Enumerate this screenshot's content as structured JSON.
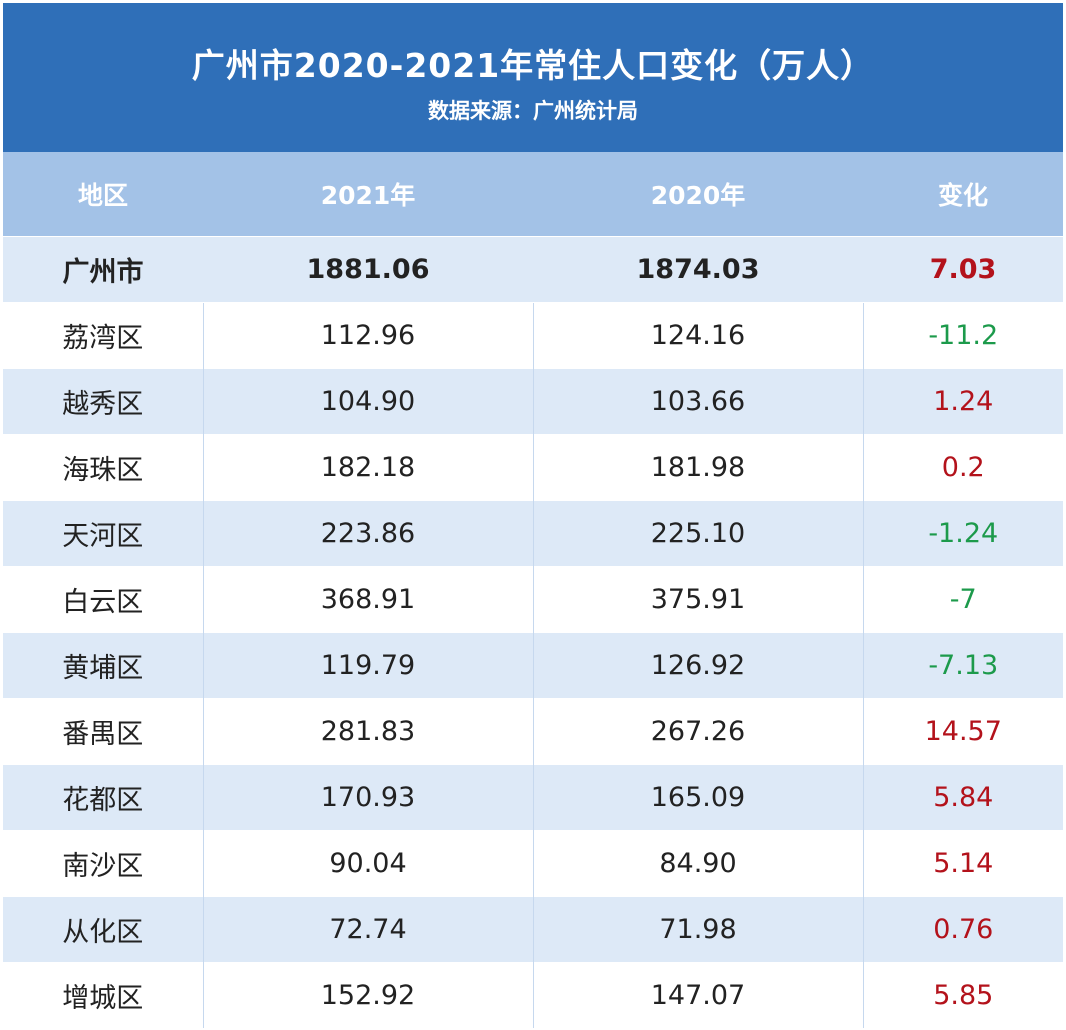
{
  "header": {
    "title": "广州市2020-2021年常住人口变化（万人）",
    "subtitle": "数据来源：广州统计局"
  },
  "colors": {
    "header_bg": "#2f6fb8",
    "column_header_bg": "#a3c2e7",
    "row_stripe": "#dde9f7",
    "increase": "#b3121b",
    "decrease": "#1c9a4b"
  },
  "chart_data": {
    "type": "table",
    "title": "广州市2020-2021年常住人口变化（万人）",
    "subtitle": "数据来源：广州统计局",
    "columns": [
      "地区",
      "2021年",
      "2020年",
      "变化"
    ],
    "rows": [
      {
        "region": "广州市",
        "y2021": "1881.06",
        "y2020": "1874.03",
        "change": "7.03"
      },
      {
        "region": "荔湾区",
        "y2021": "112.96",
        "y2020": "124.16",
        "change": "-11.2"
      },
      {
        "region": "越秀区",
        "y2021": "104.90",
        "y2020": "103.66",
        "change": "1.24"
      },
      {
        "region": "海珠区",
        "y2021": "182.18",
        "y2020": "181.98",
        "change": "0.2"
      },
      {
        "region": "天河区",
        "y2021": "223.86",
        "y2020": "225.10",
        "change": "-1.24"
      },
      {
        "region": "白云区",
        "y2021": "368.91",
        "y2020": "375.91",
        "change": "-7"
      },
      {
        "region": "黄埔区",
        "y2021": "119.79",
        "y2020": "126.92",
        "change": "-7.13"
      },
      {
        "region": "番禺区",
        "y2021": "281.83",
        "y2020": "267.26",
        "change": "14.57"
      },
      {
        "region": "花都区",
        "y2021": "170.93",
        "y2020": "165.09",
        "change": "5.84"
      },
      {
        "region": "南沙区",
        "y2021": "90.04",
        "y2020": "84.90",
        "change": "5.14"
      },
      {
        "region": "从化区",
        "y2021": "72.74",
        "y2020": "71.98",
        "change": "0.76"
      },
      {
        "region": "增城区",
        "y2021": "152.92",
        "y2020": "147.07",
        "change": "5.85"
      }
    ]
  }
}
